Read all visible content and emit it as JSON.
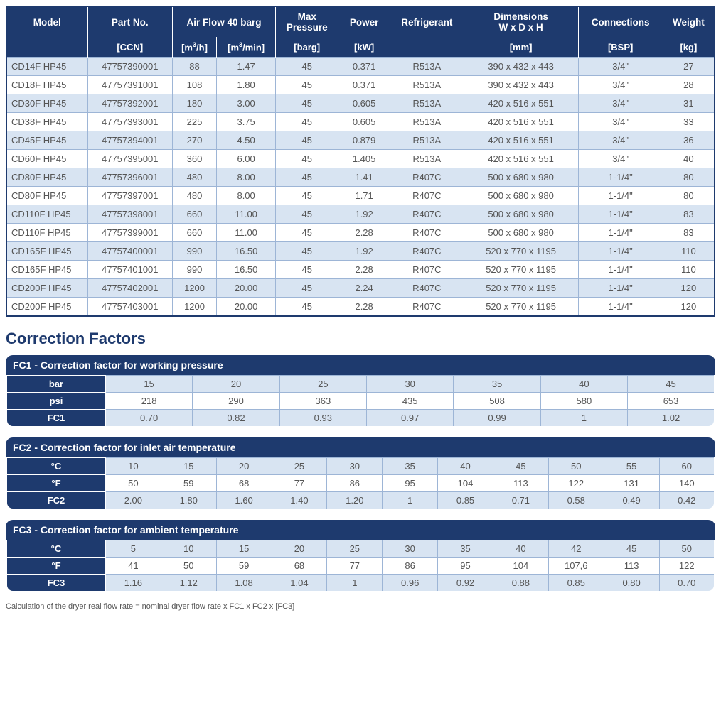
{
  "colors": {
    "header_bg": "#1e3a6e",
    "header_text": "#ffffff",
    "row_odd": "#d8e4f2",
    "row_even": "#ffffff",
    "border": "#9db5d6",
    "cell_text": "#555555"
  },
  "main_table": {
    "col_widths": [
      "11%",
      "11.5%",
      "6%",
      "8%",
      "8.5%",
      "7%",
      "10%",
      "15.5%",
      "11.5%",
      "7%"
    ],
    "header_top": [
      {
        "label": "Model",
        "colspan": 1,
        "rowspan": 1
      },
      {
        "label": "Part No.",
        "colspan": 1,
        "rowspan": 1
      },
      {
        "label": "Air Flow 40 barg",
        "colspan": 2,
        "rowspan": 1
      },
      {
        "label": "Max Pressure",
        "colspan": 1,
        "rowspan": 1
      },
      {
        "label": "Power",
        "colspan": 1,
        "rowspan": 1
      },
      {
        "label": "Refrigerant",
        "colspan": 1,
        "rowspan": 1
      },
      {
        "label": "Dimensions W x D x H",
        "colspan": 1,
        "rowspan": 1
      },
      {
        "label": "Connections",
        "colspan": 1,
        "rowspan": 1
      },
      {
        "label": "Weight",
        "colspan": 1,
        "rowspan": 1
      }
    ],
    "header_sub": [
      "",
      "[CCN]",
      "[m³/h]",
      "[m³/min]",
      "[barg]",
      "[kW]",
      "",
      "[mm]",
      "[BSP]",
      "[kg]"
    ],
    "rows": [
      [
        "CD14F HP45",
        "47757390001",
        "88",
        "1.47",
        "45",
        "0.371",
        "R513A",
        "390 x 432 x 443",
        "3/4\"",
        "27"
      ],
      [
        "CD18F HP45",
        "47757391001",
        "108",
        "1.80",
        "45",
        "0.371",
        "R513A",
        "390 x 432 x 443",
        "3/4\"",
        "28"
      ],
      [
        "CD30F HP45",
        "47757392001",
        "180",
        "3.00",
        "45",
        "0.605",
        "R513A",
        "420 x 516 x 551",
        "3/4\"",
        "31"
      ],
      [
        "CD38F HP45",
        "47757393001",
        "225",
        "3.75",
        "45",
        "0.605",
        "R513A",
        "420 x 516 x 551",
        "3/4\"",
        "33"
      ],
      [
        "CD45F HP45",
        "47757394001",
        "270",
        "4.50",
        "45",
        "0.879",
        "R513A",
        "420 x 516 x 551",
        "3/4\"",
        "36"
      ],
      [
        "CD60F HP45",
        "47757395001",
        "360",
        "6.00",
        "45",
        "1.405",
        "R513A",
        "420 x 516 x 551",
        "3/4\"",
        "40"
      ],
      [
        "CD80F HP45",
        "47757396001",
        "480",
        "8.00",
        "45",
        "1.41",
        "R407C",
        "500 x 680 x 980",
        "1-1/4\"",
        "80"
      ],
      [
        "CD80F HP45",
        "47757397001",
        "480",
        "8.00",
        "45",
        "1.71",
        "R407C",
        "500 x 680 x 980",
        "1-1/4\"",
        "80"
      ],
      [
        "CD110F HP45",
        "47757398001",
        "660",
        "11.00",
        "45",
        "1.92",
        "R407C",
        "500 x 680 x 980",
        "1-1/4\"",
        "83"
      ],
      [
        "CD110F HP45",
        "47757399001",
        "660",
        "11.00",
        "45",
        "2.28",
        "R407C",
        "500 x 680 x 980",
        "1-1/4\"",
        "83"
      ],
      [
        "CD165F HP45",
        "47757400001",
        "990",
        "16.50",
        "45",
        "1.92",
        "R407C",
        "520 x 770 x 1195",
        "1-1/4\"",
        "110"
      ],
      [
        "CD165F HP45",
        "47757401001",
        "990",
        "16.50",
        "45",
        "2.28",
        "R407C",
        "520 x 770 x 1195",
        "1-1/4\"",
        "110"
      ],
      [
        "CD200F HP45",
        "47757402001",
        "1200",
        "20.00",
        "45",
        "2.24",
        "R407C",
        "520 x 770 x 1195",
        "1-1/4\"",
        "120"
      ],
      [
        "CD200F HP45",
        "47757403001",
        "1200",
        "20.00",
        "45",
        "2.28",
        "R407C",
        "520 x 770 x 1195",
        "1-1/4\"",
        "120"
      ]
    ]
  },
  "section_title": "Correction Factors",
  "fc1": {
    "title": "FC1 - Correction factor for working pressure",
    "label_col_width": "14%",
    "rows": [
      {
        "label": "bar",
        "vals": [
          "15",
          "20",
          "25",
          "30",
          "35",
          "40",
          "45"
        ],
        "stripe": "odd"
      },
      {
        "label": "psi",
        "vals": [
          "218",
          "290",
          "363",
          "435",
          "508",
          "580",
          "653"
        ],
        "stripe": "even"
      },
      {
        "label": "FC1",
        "vals": [
          "0.70",
          "0.82",
          "0.93",
          "0.97",
          "0.99",
          "1",
          "1.02"
        ],
        "stripe": "odd"
      }
    ]
  },
  "fc2": {
    "title": "FC2 - Correction factor for inlet air temperature",
    "label_col_width": "14%",
    "rows": [
      {
        "label": "°C",
        "vals": [
          "10",
          "15",
          "20",
          "25",
          "30",
          "35",
          "40",
          "45",
          "50",
          "55",
          "60"
        ],
        "stripe": "odd"
      },
      {
        "label": "°F",
        "vals": [
          "50",
          "59",
          "68",
          "77",
          "86",
          "95",
          "104",
          "113",
          "122",
          "131",
          "140"
        ],
        "stripe": "even"
      },
      {
        "label": "FC2",
        "vals": [
          "2.00",
          "1.80",
          "1.60",
          "1.40",
          "1.20",
          "1",
          "0.85",
          "0.71",
          "0.58",
          "0.49",
          "0.42"
        ],
        "stripe": "odd"
      }
    ]
  },
  "fc3": {
    "title": "FC3 - Correction factor for ambient temperature",
    "label_col_width": "14%",
    "rows": [
      {
        "label": "°C",
        "vals": [
          "5",
          "10",
          "15",
          "20",
          "25",
          "30",
          "35",
          "40",
          "42",
          "45",
          "50"
        ],
        "stripe": "odd"
      },
      {
        "label": "°F",
        "vals": [
          "41",
          "50",
          "59",
          "68",
          "77",
          "86",
          "95",
          "104",
          "107,6",
          "113",
          "122"
        ],
        "stripe": "even"
      },
      {
        "label": "FC3",
        "vals": [
          "1.16",
          "1.12",
          "1.08",
          "1.04",
          "1",
          "0.96",
          "0.92",
          "0.88",
          "0.85",
          "0.80",
          "0.70"
        ],
        "stripe": "odd"
      }
    ]
  },
  "foot_note": "Calculation of the dryer real flow rate = nominal dryer flow rate x FC1 x FC2 x [FC3]"
}
